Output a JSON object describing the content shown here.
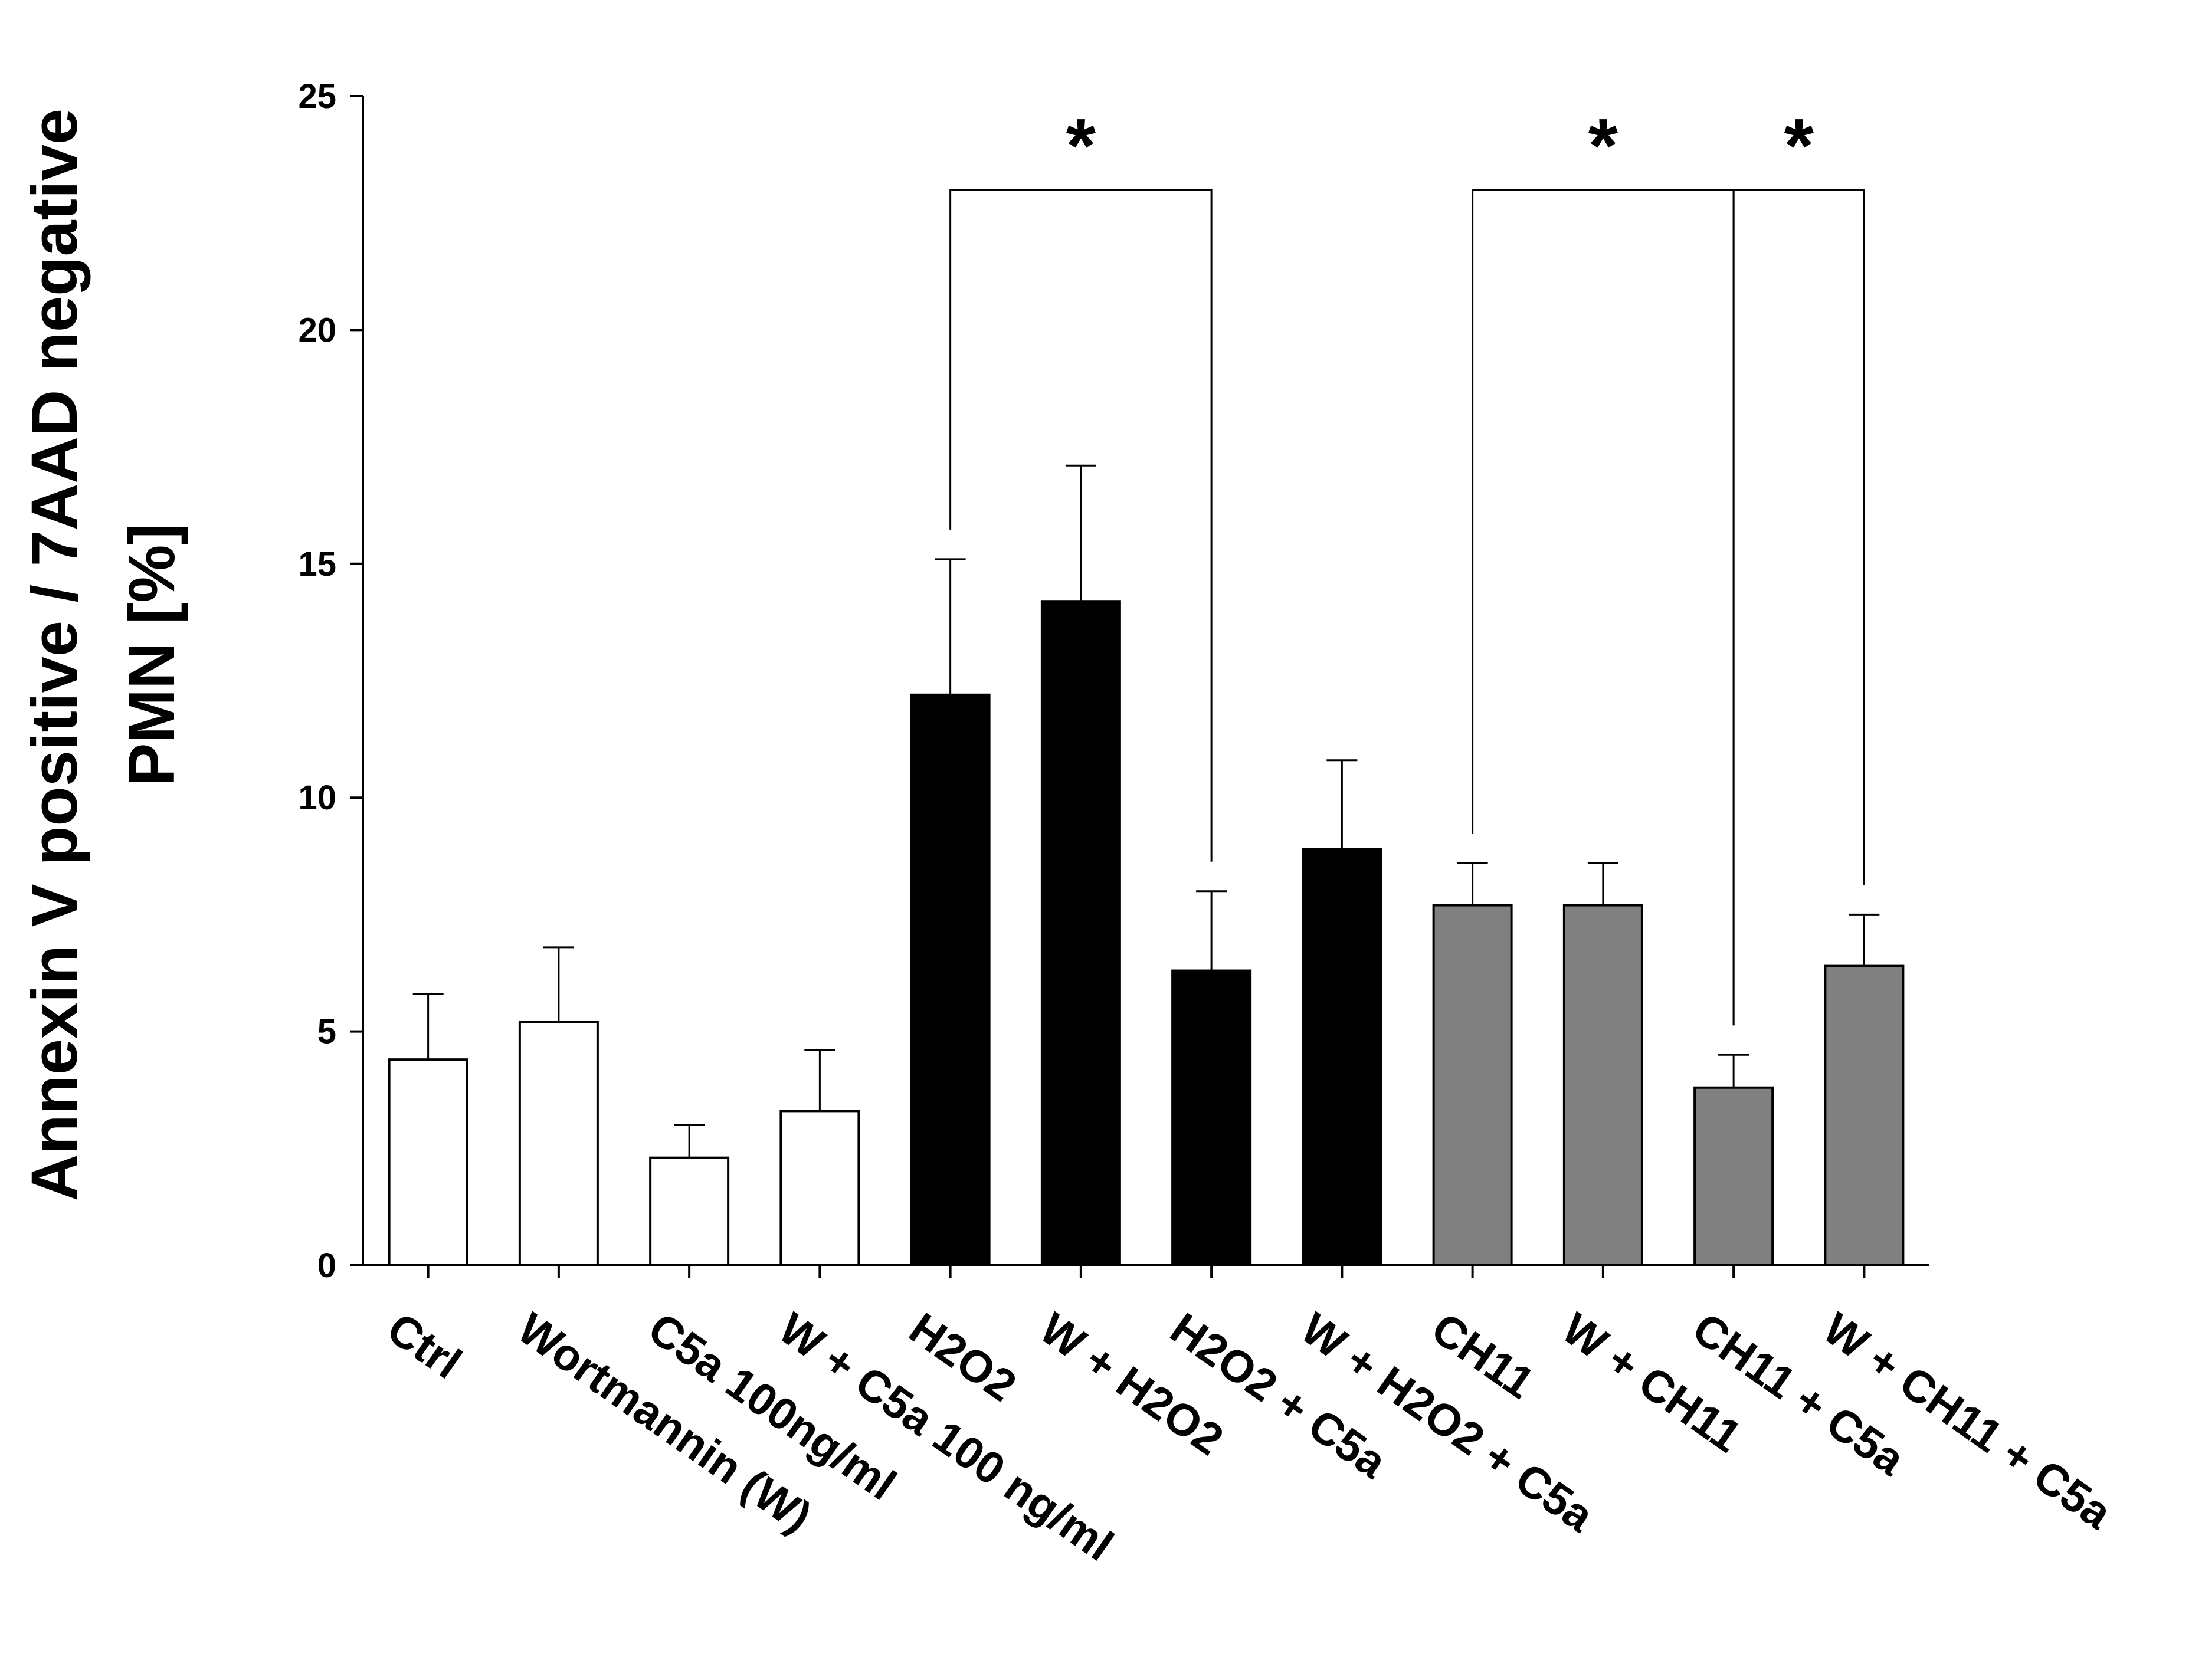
{
  "chart_data": {
    "type": "bar",
    "title": "",
    "xlabel": "",
    "ylabel_lines": [
      "Annexin V positive / 7AAD negative",
      "PMN [%]"
    ],
    "ylim": [
      0,
      25
    ],
    "yticks": [
      0,
      5,
      10,
      15,
      20,
      25
    ],
    "grid": false,
    "legend": "none",
    "categories": [
      "Ctrl",
      "Wortmannin (W)",
      "C5a 100ng/ml",
      "W + C5a 100 ng/ml",
      "H2O2",
      "W + H2O2",
      "H2O2 + C5a",
      "W + H2O2 + C5a",
      "CH11",
      "W + CH11",
      "CH11 + C5a",
      "W + CH11 + C5a"
    ],
    "values": [
      4.4,
      5.2,
      2.3,
      3.3,
      12.2,
      14.2,
      6.3,
      8.9,
      7.7,
      7.7,
      3.8,
      6.4
    ],
    "errors": [
      1.4,
      1.6,
      0.7,
      1.3,
      2.9,
      2.9,
      1.7,
      1.9,
      0.9,
      0.9,
      0.7,
      1.1
    ],
    "bar_colors": [
      "#ffffff",
      "#ffffff",
      "#ffffff",
      "#ffffff",
      "#000000",
      "#000000",
      "#000000",
      "#000000",
      "#808080",
      "#808080",
      "#808080",
      "#808080"
    ],
    "significance": [
      {
        "from": "H2O2",
        "to": "H2O2 + C5a",
        "level": 23,
        "label": "*"
      },
      {
        "from": "CH11",
        "to": "CH11 + C5a",
        "level": 23,
        "label": "*"
      },
      {
        "from": "CH11 + C5a",
        "to": "W + CH11 + C5a",
        "level": 23,
        "label": "*"
      }
    ]
  }
}
